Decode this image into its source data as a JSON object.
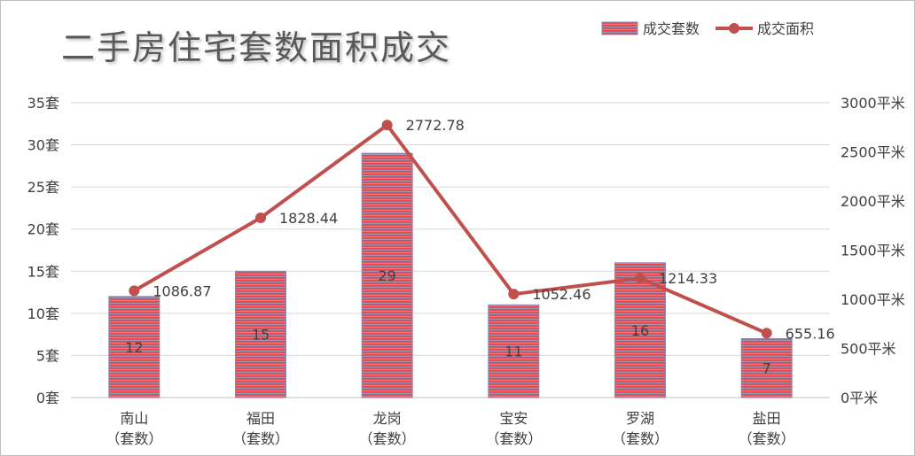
{
  "chart_data": {
    "type": "bar",
    "title": "二手房住宅套数面积成交",
    "categories": [
      [
        "南山",
        "（套数）"
      ],
      [
        "福田",
        "（套数）"
      ],
      [
        "龙岗",
        "（套数）"
      ],
      [
        "宝安",
        "（套数）"
      ],
      [
        "罗湖",
        "（套数）"
      ],
      [
        "盐田",
        "（套数）"
      ]
    ],
    "series": [
      {
        "name": "成交套数",
        "type": "bar",
        "axis": "left",
        "values": [
          12,
          15,
          29,
          11,
          16,
          7
        ],
        "color": "#e8464a",
        "stripe_color": "#9a9ab8",
        "labels": [
          "12",
          "15",
          "29",
          "11",
          "16",
          "7"
        ]
      },
      {
        "name": "成交面积",
        "type": "line",
        "axis": "right",
        "values": [
          1086.87,
          1828.44,
          2772.78,
          1052.46,
          1214.33,
          655.16
        ],
        "color": "#c0504d",
        "labels": [
          "1086.87",
          "1828.44",
          "2772.78",
          "1052.46",
          "1214.33",
          "655.16"
        ]
      }
    ],
    "y_left": {
      "min": 0,
      "max": 35,
      "step": 5,
      "tick_labels": [
        "0套",
        "5套",
        "10套",
        "15套",
        "20套",
        "25套",
        "30套",
        "35套"
      ]
    },
    "y_right": {
      "min": 0,
      "max": 3000,
      "step": 500,
      "tick_labels": [
        "0平米",
        "500平米",
        "1000平米",
        "1500平米",
        "2000平米",
        "2500平米",
        "3000平米"
      ]
    },
    "grid": true,
    "legend_position": "top-right"
  }
}
